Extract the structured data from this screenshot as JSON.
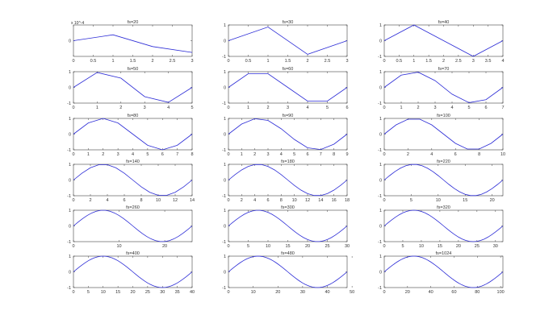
{
  "figure": {
    "background": "#ffffff",
    "line_color": "#2b2bd6",
    "axis_color": "#444444",
    "grid": false
  },
  "chart_data": [
    {
      "type": "line",
      "title": "fs=20",
      "x": [
        0,
        1,
        2,
        3
      ],
      "values": [
        0.0,
        3e-05,
        -3e-05,
        -6e-05
      ],
      "xlim": [
        0,
        3
      ],
      "ylim": [
        -8e-05,
        8e-05
      ],
      "xticks": [
        "0",
        "0.5",
        "1",
        "1.5",
        "2",
        "2.5",
        "3"
      ],
      "yticks": [
        "0"
      ],
      "y_exponent": "x 10^-4"
    },
    {
      "type": "line",
      "title": "fs=30",
      "x": [
        0,
        1,
        2,
        3
      ],
      "values": [
        0.0,
        0.87,
        -0.87,
        0.0
      ],
      "xlim": [
        0,
        3
      ],
      "ylim": [
        -1,
        1
      ],
      "xticks": [
        "0",
        "0.5",
        "1",
        "1.5",
        "2",
        "2.5",
        "3"
      ],
      "yticks": [
        "-1",
        "0",
        "1"
      ]
    },
    {
      "type": "line",
      "title": "fs=40",
      "x": [
        0,
        1,
        2,
        3,
        4
      ],
      "values": [
        0.0,
        1.0,
        0.0,
        -1.0,
        0.0
      ],
      "xlim": [
        0,
        4
      ],
      "ylim": [
        -1,
        1
      ],
      "xticks": [
        "0",
        "0.5",
        "1",
        "1.5",
        "2",
        "2.5",
        "3",
        "3.5",
        "4"
      ],
      "yticks": [
        "-1",
        "0",
        "1"
      ]
    },
    {
      "type": "line",
      "title": "fs=50",
      "x": [
        0,
        1,
        2,
        3,
        4,
        5
      ],
      "values": [
        0.0,
        0.95,
        0.59,
        -0.59,
        -0.95,
        0.0
      ],
      "xlim": [
        0,
        5
      ],
      "ylim": [
        -1,
        1
      ],
      "xticks": [
        "0",
        "1",
        "2",
        "3",
        "4",
        "5"
      ],
      "yticks": [
        "-1",
        "0",
        "1"
      ]
    },
    {
      "type": "line",
      "title": "fs=60",
      "x": [
        0,
        1,
        2,
        3,
        4,
        5,
        6
      ],
      "values": [
        0.0,
        0.87,
        0.87,
        0.0,
        -0.87,
        -0.87,
        0.0
      ],
      "xlim": [
        0,
        6
      ],
      "ylim": [
        -1,
        1
      ],
      "xticks": [
        "0",
        "1",
        "2",
        "3",
        "4",
        "5",
        "6"
      ],
      "yticks": [
        "-1",
        "0",
        "1"
      ]
    },
    {
      "type": "line",
      "title": "fs=70",
      "x": [
        0,
        1,
        2,
        3,
        4,
        5,
        6,
        7
      ],
      "values": [
        0.0,
        0.78,
        0.97,
        0.43,
        -0.43,
        -0.97,
        -0.78,
        0.0
      ],
      "xlim": [
        0,
        7
      ],
      "ylim": [
        -1,
        1
      ],
      "xticks": [
        "0",
        "1",
        "2",
        "3",
        "4",
        "5",
        "6",
        "7"
      ],
      "yticks": [
        "-1",
        "0",
        "1"
      ]
    },
    {
      "type": "line",
      "title": "fs=80",
      "x": [
        0,
        1,
        2,
        3,
        4,
        5,
        6,
        7,
        8
      ],
      "values": [
        0.0,
        0.71,
        1.0,
        0.71,
        0.0,
        -0.71,
        -1.0,
        -0.71,
        0.0
      ],
      "xlim": [
        0,
        8
      ],
      "ylim": [
        -1,
        1
      ],
      "xticks": [
        "0",
        "1",
        "2",
        "3",
        "4",
        "5",
        "6",
        "7",
        "8"
      ],
      "yticks": [
        "-1",
        "0",
        "1"
      ]
    },
    {
      "type": "line",
      "title": "fs=90",
      "x": [
        0,
        1,
        2,
        3,
        4,
        5,
        6,
        7,
        8,
        9
      ],
      "values": [
        0.0,
        0.64,
        0.98,
        0.87,
        0.34,
        -0.34,
        -0.87,
        -0.98,
        -0.64,
        0.0
      ],
      "xlim": [
        0,
        9
      ],
      "ylim": [
        -1,
        1
      ],
      "xticks": [
        "0",
        "1",
        "2",
        "3",
        "4",
        "5",
        "6",
        "7",
        "8",
        "9"
      ],
      "yticks": [
        "-1",
        "0",
        "1"
      ]
    },
    {
      "type": "line",
      "title": "fs=100",
      "x": [
        0,
        1,
        2,
        3,
        4,
        5,
        6,
        7,
        8,
        9,
        10
      ],
      "values": [
        0.0,
        0.59,
        0.95,
        0.95,
        0.59,
        0.0,
        -0.59,
        -0.95,
        -0.95,
        -0.59,
        0.0
      ],
      "xlim": [
        0,
        10
      ],
      "ylim": [
        -1,
        1
      ],
      "xticks": [
        "0",
        "2",
        "4",
        "6",
        "8",
        "10"
      ],
      "yticks": [
        "-1",
        "0",
        "1"
      ]
    },
    {
      "type": "line",
      "title": "fs=140",
      "samples": 15,
      "xlim": [
        0,
        14
      ],
      "ylim": [
        -1,
        1
      ],
      "xticks": [
        "0",
        "2",
        "4",
        "6",
        "8",
        "10",
        "12",
        "14"
      ],
      "yticks": [
        "-1",
        "0",
        "1"
      ]
    },
    {
      "type": "line",
      "title": "fs=180",
      "samples": 19,
      "xlim": [
        0,
        18
      ],
      "ylim": [
        -1,
        1
      ],
      "xticks": [
        "0",
        "2",
        "4",
        "6",
        "8",
        "10",
        "12",
        "14",
        "16",
        "18"
      ],
      "yticks": [
        "-1",
        "0",
        "1"
      ]
    },
    {
      "type": "line",
      "title": "fs=220",
      "samples": 23,
      "xlim": [
        0,
        22
      ],
      "ylim": [
        -1,
        1
      ],
      "xticks": [
        "0",
        "5",
        "10",
        "15",
        "20"
      ],
      "yticks": [
        "-1",
        "0",
        "1"
      ]
    },
    {
      "type": "line",
      "title": "fs=260",
      "samples": 27,
      "xlim": [
        0,
        26
      ],
      "ylim": [
        -1,
        1
      ],
      "xticks": [
        "0",
        "10",
        "20"
      ],
      "yticks": [
        "-1",
        "0",
        "1"
      ]
    },
    {
      "type": "line",
      "title": "fs=300",
      "samples": 31,
      "xlim": [
        0,
        30
      ],
      "ylim": [
        -1,
        1
      ],
      "xticks": [
        "0",
        "5",
        "10",
        "15",
        "20",
        "25",
        "30"
      ],
      "yticks": [
        "-1",
        "0",
        "1"
      ]
    },
    {
      "type": "line",
      "title": "fs=320",
      "samples": 33,
      "xlim": [
        0,
        32
      ],
      "ylim": [
        -1,
        1
      ],
      "xticks": [
        "0",
        "5",
        "10",
        "15",
        "20",
        "25",
        "30"
      ],
      "yticks": [
        "-1",
        "0",
        "1"
      ]
    },
    {
      "type": "line",
      "title": "fs=400",
      "samples": 41,
      "xlim": [
        0,
        40
      ],
      "ylim": [
        -1,
        1
      ],
      "xticks": [
        "0",
        "5",
        "10",
        "15",
        "20",
        "25",
        "30",
        "35",
        "40"
      ],
      "yticks": [
        "-1",
        "0",
        "1"
      ]
    },
    {
      "type": "line",
      "title": "fs=480",
      "samples": 49,
      "xlim": [
        0,
        48
      ],
      "ylim": [
        -1,
        1
      ],
      "xticks": [
        "0",
        "10",
        "20",
        "30",
        "40",
        "50"
      ],
      "yticks": [
        "-1",
        "0",
        "1"
      ]
    },
    {
      "type": "line",
      "title": "fs=1024",
      "samples": 103,
      "xlim": [
        0,
        102
      ],
      "ylim": [
        -1,
        1
      ],
      "xticks": [
        "0",
        "20",
        "40",
        "60",
        "80",
        "100"
      ],
      "yticks": [
        "-1",
        "0",
        "1"
      ]
    }
  ]
}
